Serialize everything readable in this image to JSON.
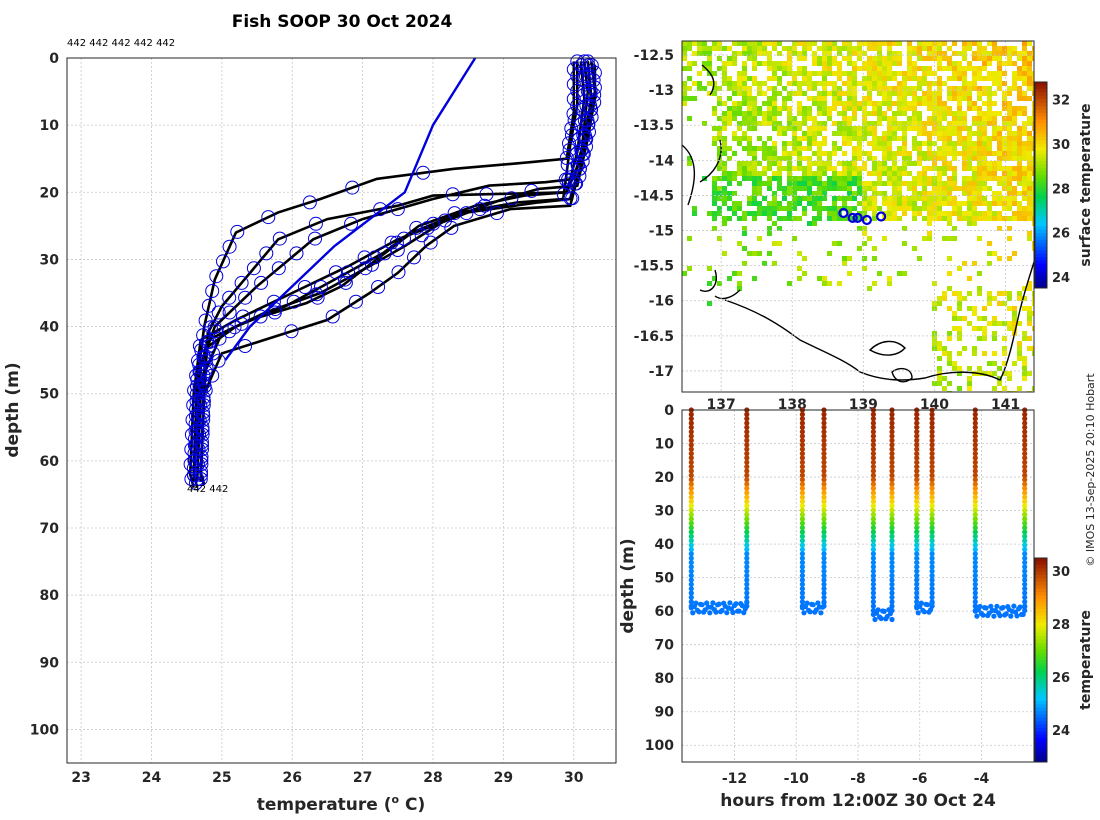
{
  "title": "Fish SOOP 30 Oct 2024",
  "copyright": "© IMOS 13-Sep-2025 20:10 Hobart",
  "chart_data": [
    {
      "id": "profiles",
      "type": "line",
      "xlabel": "temperature (o C)",
      "xlabel_main": "temperature (",
      "xlabel_sup": "o",
      "xlabel_end": " C)",
      "ylabel": "depth (m)",
      "xlim": [
        22.8,
        30.6
      ],
      "ylim": [
        105,
        0
      ],
      "xticks": [
        23,
        24,
        25,
        26,
        27,
        28,
        29,
        30
      ],
      "yticks": [
        0,
        10,
        20,
        30,
        40,
        50,
        60,
        70,
        80,
        90,
        100
      ],
      "top_labels": "442 442 442 442 442",
      "bottom_labels": "442 442",
      "climatology": {
        "name": "climatology",
        "color": "#0000dd",
        "points": [
          [
            28.6,
            0
          ],
          [
            28.0,
            10
          ],
          [
            27.6,
            20
          ],
          [
            26.6,
            28
          ],
          [
            25.9,
            35
          ],
          [
            25.4,
            40
          ],
          [
            25.05,
            45
          ]
        ]
      },
      "profiles": [
        {
          "color": "#000000",
          "points": [
            [
              30.15,
              0.5
            ],
            [
              30.2,
              5
            ],
            [
              30.15,
              10
            ],
            [
              30.1,
              15
            ],
            [
              29.9,
              20
            ],
            [
              28.0,
              20.5
            ],
            [
              27.5,
              22
            ],
            [
              26.5,
              24
            ],
            [
              25.8,
              27
            ],
            [
              25.4,
              32
            ],
            [
              25.0,
              37
            ],
            [
              24.8,
              41
            ],
            [
              24.75,
              50
            ],
            [
              24.7,
              62
            ],
            [
              24.75,
              63.5
            ]
          ]
        },
        {
          "color": "#000000",
          "points": [
            [
              30.25,
              0.5
            ],
            [
              30.3,
              5
            ],
            [
              30.2,
              10
            ],
            [
              30.1,
              16
            ],
            [
              29.95,
              21
            ],
            [
              29.5,
              21.5
            ],
            [
              28.5,
              23
            ],
            [
              27.5,
              27
            ],
            [
              26.8,
              31
            ],
            [
              26.0,
              35
            ],
            [
              25.2,
              39
            ],
            [
              24.7,
              42
            ],
            [
              24.6,
              50
            ],
            [
              24.55,
              62
            ],
            [
              24.6,
              64
            ]
          ]
        },
        {
          "color": "#000000",
          "points": [
            [
              30.0,
              0.5
            ],
            [
              30.0,
              8
            ],
            [
              29.9,
              15
            ],
            [
              29.4,
              15.5
            ],
            [
              28.3,
              16.5
            ],
            [
              27.2,
              18
            ],
            [
              26.4,
              21
            ],
            [
              25.8,
              23
            ],
            [
              25.2,
              26
            ],
            [
              24.9,
              33
            ],
            [
              24.75,
              40
            ],
            [
              24.65,
              48
            ],
            [
              24.6,
              62
            ],
            [
              24.65,
              64
            ]
          ]
        },
        {
          "color": "#000000",
          "points": [
            [
              30.2,
              0.5
            ],
            [
              30.25,
              6
            ],
            [
              30.15,
              12
            ],
            [
              30.0,
              18
            ],
            [
              29.6,
              18.5
            ],
            [
              28.8,
              19
            ],
            [
              28.0,
              21
            ],
            [
              27.0,
              24
            ],
            [
              26.3,
              27
            ],
            [
              25.5,
              34
            ],
            [
              24.9,
              40
            ],
            [
              24.7,
              46
            ],
            [
              24.65,
              55
            ],
            [
              24.6,
              63
            ]
          ]
        },
        {
          "color": "#000000",
          "points": [
            [
              30.1,
              0.5
            ],
            [
              30.15,
              6
            ],
            [
              30.05,
              14
            ],
            [
              29.9,
              20
            ],
            [
              29.3,
              20.5
            ],
            [
              28.6,
              22
            ],
            [
              27.8,
              25
            ],
            [
              27.3,
              29
            ],
            [
              26.6,
              33
            ],
            [
              25.9,
              37
            ],
            [
              25.2,
              40
            ],
            [
              24.8,
              43
            ],
            [
              24.7,
              50
            ],
            [
              24.65,
              63
            ]
          ]
        },
        {
          "color": "#000000",
          "points": [
            [
              30.3,
              1
            ],
            [
              30.3,
              6
            ],
            [
              30.2,
              12
            ],
            [
              30.05,
              19
            ],
            [
              29.5,
              19.5
            ],
            [
              29.0,
              21
            ],
            [
              28.2,
              24
            ],
            [
              27.6,
              28
            ],
            [
              27.1,
              31
            ],
            [
              26.4,
              35
            ],
            [
              25.6,
              38
            ],
            [
              25.0,
              41
            ],
            [
              24.75,
              47
            ],
            [
              24.7,
              63
            ]
          ]
        },
        {
          "color": "#000000",
          "points": [
            [
              30.05,
              0.5
            ],
            [
              30.05,
              7
            ],
            [
              29.95,
              13
            ],
            [
              29.85,
              21
            ],
            [
              29.2,
              21.5
            ],
            [
              28.4,
              23
            ],
            [
              27.7,
              26
            ],
            [
              27.2,
              30
            ],
            [
              26.7,
              34
            ],
            [
              26.2,
              36.5
            ],
            [
              25.4,
              39
            ],
            [
              24.8,
              42
            ],
            [
              24.65,
              48
            ],
            [
              24.6,
              63
            ]
          ]
        },
        {
          "color": "#000000",
          "points": [
            [
              30.2,
              0.5
            ],
            [
              30.25,
              7
            ],
            [
              30.15,
              14
            ],
            [
              29.95,
              22
            ],
            [
              29.1,
              22.5
            ],
            [
              28.3,
              25
            ],
            [
              27.9,
              28
            ],
            [
              27.5,
              32
            ],
            [
              27.1,
              35
            ],
            [
              26.5,
              39
            ],
            [
              25.6,
              42
            ],
            [
              25.0,
              44
            ],
            [
              24.75,
              50
            ],
            [
              24.7,
              63
            ]
          ]
        }
      ],
      "markers_color": "#0000dd"
    },
    {
      "id": "map",
      "type": "heatmap",
      "xticks": [
        137,
        138,
        139,
        140,
        141
      ],
      "yticks": [
        -12.5,
        -13,
        -13.5,
        -14,
        -14.5,
        -15,
        -15.5,
        -16,
        -16.5,
        -17
      ],
      "xlim": [
        136.45,
        141.4
      ],
      "ylim": [
        -17.3,
        -12.3
      ],
      "colorbar_label": "surface temperature",
      "colorbar_ticks": [
        24,
        26,
        28,
        30,
        32
      ],
      "colorbar_range": [
        23.5,
        32.8
      ],
      "track": [
        [
          138.72,
          -14.75
        ],
        [
          138.85,
          -14.82
        ],
        [
          138.92,
          -14.82
        ],
        [
          139.05,
          -14.85
        ],
        [
          139.25,
          -14.8
        ]
      ]
    },
    {
      "id": "section",
      "type": "scatter",
      "xlabel": "hours from 12:00Z 30 Oct 24",
      "ylabel": "depth (m)",
      "xlim": [
        -13.7,
        -2.3
      ],
      "ylim": [
        105,
        0
      ],
      "xticks": [
        -12,
        -10,
        -8,
        -6,
        -4
      ],
      "yticks": [
        0,
        10,
        20,
        30,
        40,
        50,
        60,
        70,
        80,
        90,
        100
      ],
      "colorbar_label": "temperature",
      "colorbar_ticks": [
        24,
        26,
        28,
        30
      ],
      "colorbar_range": [
        22.8,
        30.5
      ],
      "casts": [
        {
          "down_hour": -13.4,
          "up_hour": -11.6,
          "bottom": 62
        },
        {
          "down_hour": -9.8,
          "up_hour": -9.1,
          "bottom": 62
        },
        {
          "down_hour": -7.5,
          "up_hour": -6.9,
          "bottom": 64
        },
        {
          "down_hour": -6.1,
          "up_hour": -5.6,
          "bottom": 62
        },
        {
          "down_hour": -4.2,
          "up_hour": -2.6,
          "bottom": 63
        }
      ]
    }
  ]
}
